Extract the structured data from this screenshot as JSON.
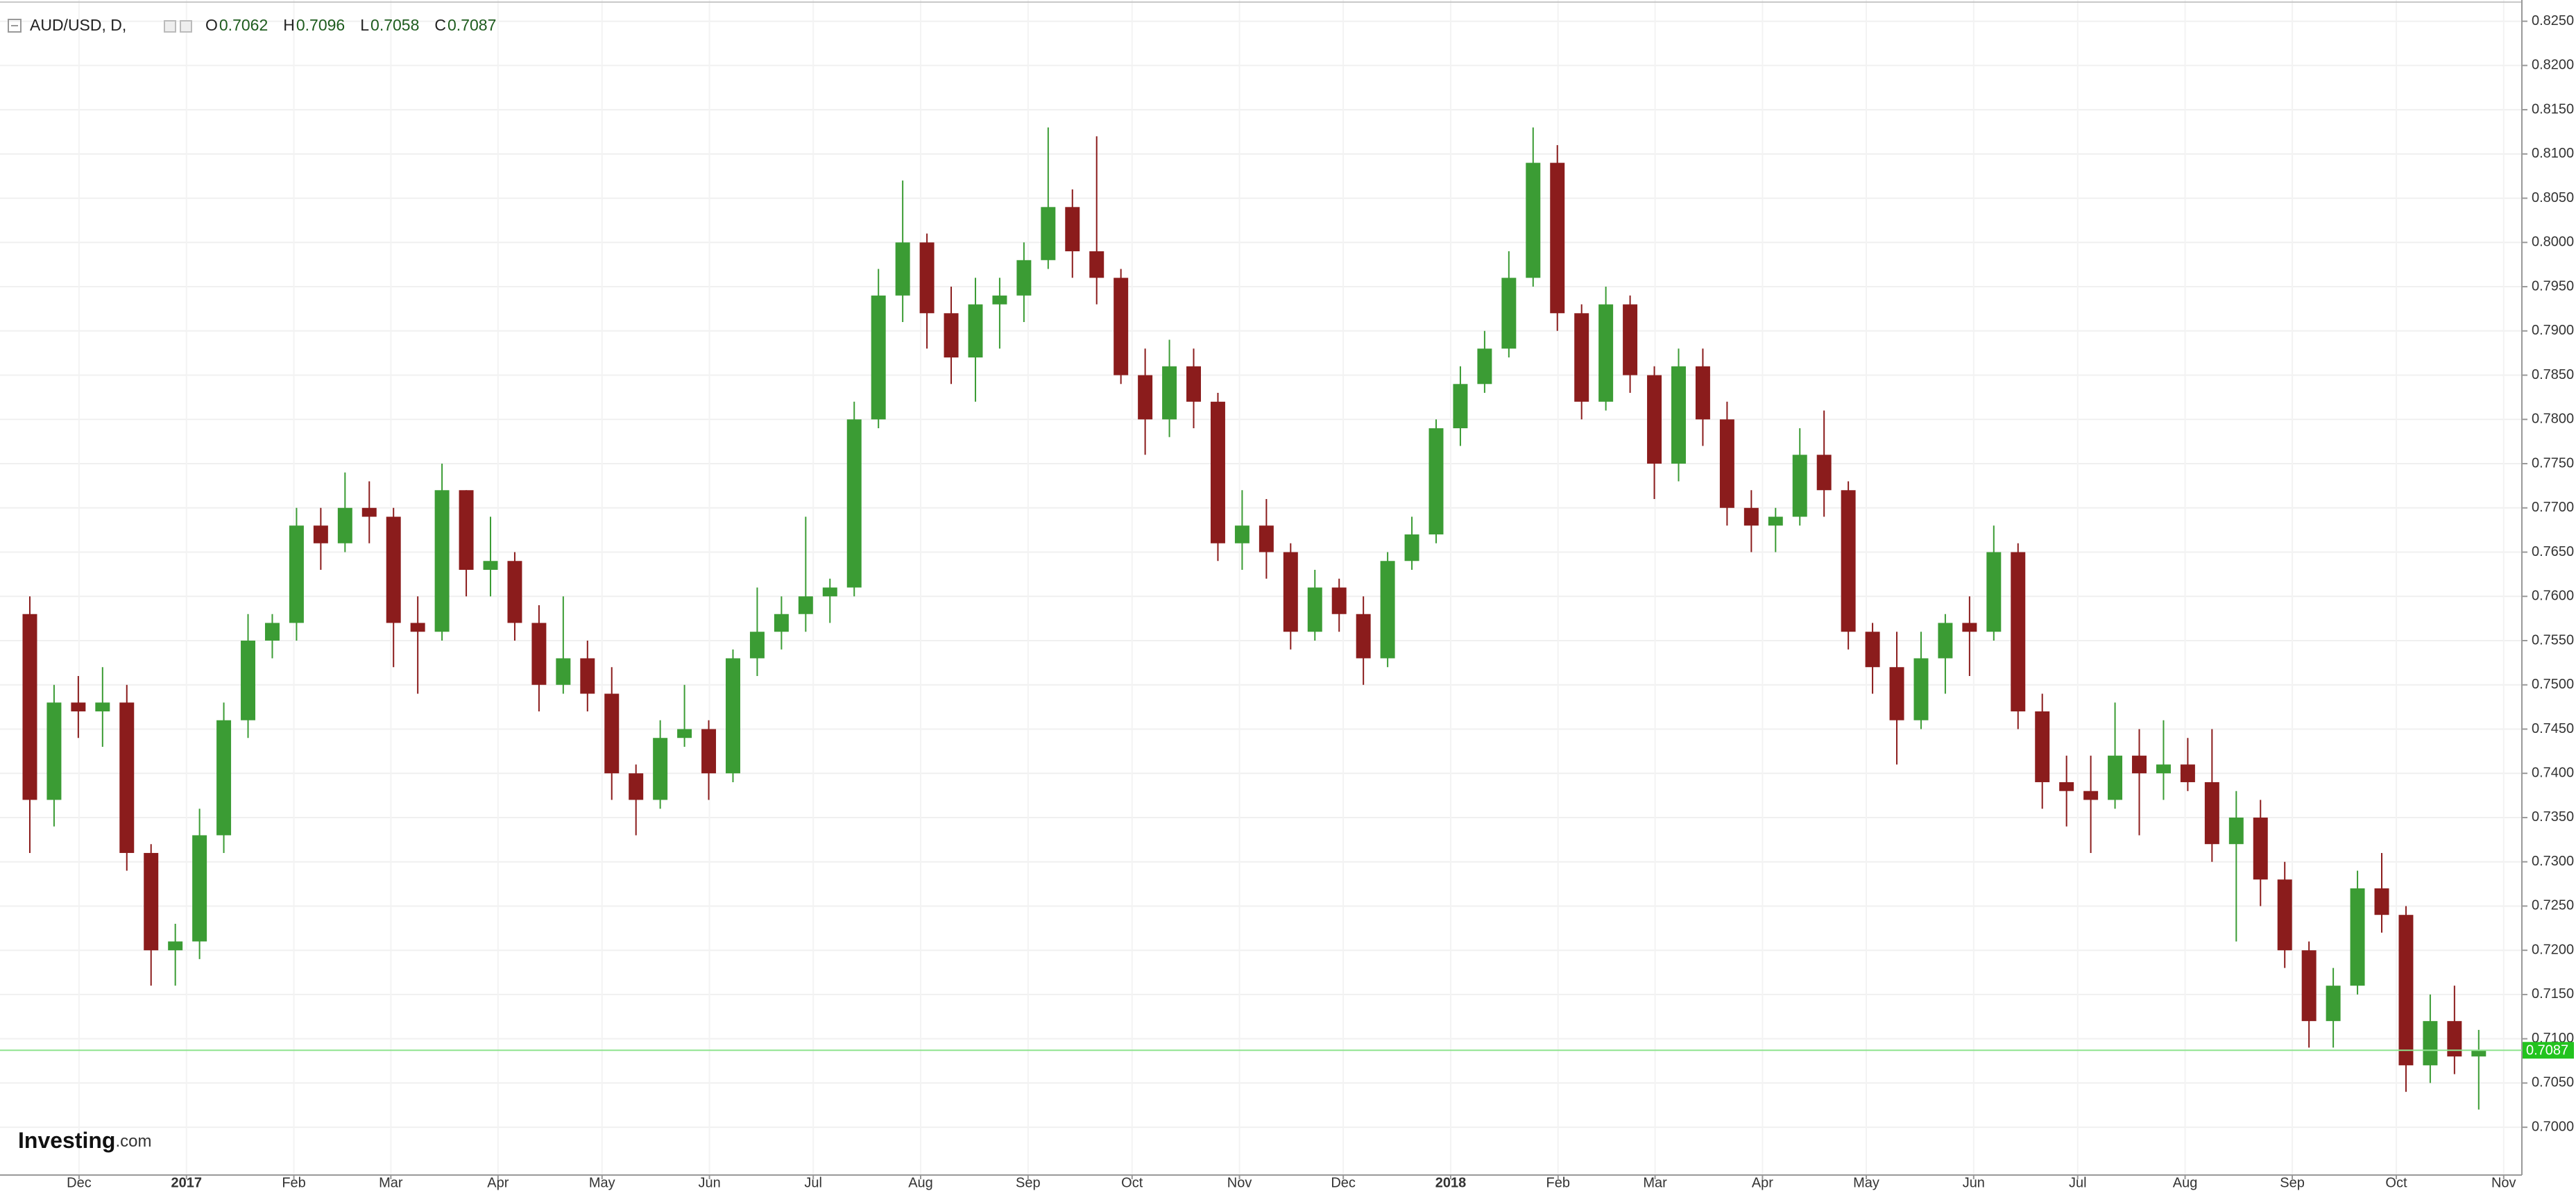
{
  "chart_data": {
    "type": "candlestick",
    "title": "AUD/USD, D,",
    "ohlc_legend": [
      {
        "name": "O",
        "value": 0.7062
      },
      {
        "name": "H",
        "value": 0.7096
      },
      {
        "name": "L",
        "value": 0.7058
      },
      {
        "name": "C",
        "value": 0.7087
      }
    ],
    "logo": {
      "brand": "Investing",
      "suffix": ".com"
    },
    "up_color": "#3b9c34",
    "down_color": "#8b1c1c",
    "grid": true,
    "last_price": 0.7087,
    "last_price_color": "#22c31e",
    "xlim": [
      -1.23,
      102.78
    ],
    "ylim": [
      0.6946,
      0.8274
    ],
    "xticks": [
      {
        "value": 2.03,
        "label": "Dec"
      },
      {
        "value": 6.46,
        "label": "2017"
      },
      {
        "value": 10.89,
        "label": "Feb"
      },
      {
        "value": 14.89,
        "label": "Mar"
      },
      {
        "value": 19.31,
        "label": "Apr"
      },
      {
        "value": 23.6,
        "label": "May"
      },
      {
        "value": 28.03,
        "label": "Jun"
      },
      {
        "value": 32.31,
        "label": "Jul"
      },
      {
        "value": 36.74,
        "label": "Aug"
      },
      {
        "value": 41.17,
        "label": "Sep"
      },
      {
        "value": 45.46,
        "label": "Oct"
      },
      {
        "value": 49.89,
        "label": "Nov"
      },
      {
        "value": 54.17,
        "label": "Dec"
      },
      {
        "value": 58.6,
        "label": "2018"
      },
      {
        "value": 63.03,
        "label": "Feb"
      },
      {
        "value": 67.03,
        "label": "Mar"
      },
      {
        "value": 71.46,
        "label": "Apr"
      },
      {
        "value": 75.74,
        "label": "May"
      },
      {
        "value": 80.17,
        "label": "Jun"
      },
      {
        "value": 84.46,
        "label": "Jul"
      },
      {
        "value": 88.89,
        "label": "Aug"
      },
      {
        "value": 93.31,
        "label": "Sep"
      },
      {
        "value": 97.6,
        "label": "Oct"
      },
      {
        "value": 102.03,
        "label": "Nov"
      }
    ],
    "yticks": [
      {
        "value": 0.7,
        "label": "0.7000"
      },
      {
        "value": 0.705,
        "label": "0.7050"
      },
      {
        "value": 0.71,
        "label": "0.7100"
      },
      {
        "value": 0.715,
        "label": "0.7150"
      },
      {
        "value": 0.72,
        "label": "0.7200"
      },
      {
        "value": 0.725,
        "label": "0.7250"
      },
      {
        "value": 0.73,
        "label": "0.7300"
      },
      {
        "value": 0.735,
        "label": "0.7350"
      },
      {
        "value": 0.74,
        "label": "0.7400"
      },
      {
        "value": 0.745,
        "label": "0.7450"
      },
      {
        "value": 0.75,
        "label": "0.7500"
      },
      {
        "value": 0.755,
        "label": "0.7550"
      },
      {
        "value": 0.76,
        "label": "0.7600"
      },
      {
        "value": 0.765,
        "label": "0.7650"
      },
      {
        "value": 0.77,
        "label": "0.7700"
      },
      {
        "value": 0.775,
        "label": "0.7750"
      },
      {
        "value": 0.78,
        "label": "0.7800"
      },
      {
        "value": 0.785,
        "label": "0.7850"
      },
      {
        "value": 0.79,
        "label": "0.7900"
      },
      {
        "value": 0.795,
        "label": "0.7950"
      },
      {
        "value": 0.8,
        "label": "0.8000"
      },
      {
        "value": 0.805,
        "label": "0.8050"
      },
      {
        "value": 0.81,
        "label": "0.8100"
      },
      {
        "value": 0.815,
        "label": "0.8150"
      },
      {
        "value": 0.82,
        "label": "0.8200"
      },
      {
        "value": 0.825,
        "label": "0.8250"
      }
    ],
    "open": [
      0.758,
      0.737,
      0.748,
      0.747,
      0.748,
      0.731,
      0.72,
      0.721,
      0.733,
      0.746,
      0.755,
      0.757,
      0.768,
      0.766,
      0.77,
      0.769,
      0.757,
      0.756,
      0.772,
      0.763,
      0.764,
      0.757,
      0.75,
      0.753,
      0.749,
      0.74,
      0.737,
      0.744,
      0.745,
      0.74,
      0.753,
      0.756,
      0.758,
      0.76,
      0.761,
      0.78,
      0.794,
      0.8,
      0.792,
      0.787,
      0.793,
      0.794,
      0.798,
      0.804,
      0.799,
      0.796,
      0.785,
      0.78,
      0.786,
      0.782,
      0.766,
      0.768,
      0.765,
      0.756,
      0.761,
      0.758,
      0.753,
      0.764,
      0.767,
      0.779,
      0.784,
      0.788,
      0.796,
      0.809,
      0.792,
      0.782,
      0.793,
      0.785,
      0.775,
      0.786,
      0.78,
      0.77,
      0.768,
      0.769,
      0.776,
      0.772,
      0.756,
      0.752,
      0.746,
      0.753,
      0.757,
      0.756,
      0.765,
      0.747,
      0.739,
      0.738,
      0.737,
      0.742,
      0.74,
      0.741,
      0.739,
      0.732,
      0.735,
      0.728,
      0.72,
      0.712,
      0.716,
      0.727,
      0.724,
      0.707,
      0.712,
      0.708
    ],
    "high": [
      0.76,
      0.75,
      0.751,
      0.752,
      0.75,
      0.732,
      0.723,
      0.736,
      0.748,
      0.758,
      0.758,
      0.77,
      0.77,
      0.774,
      0.773,
      0.77,
      0.76,
      0.775,
      0.772,
      0.769,
      0.765,
      0.759,
      0.76,
      0.755,
      0.752,
      0.741,
      0.746,
      0.75,
      0.746,
      0.754,
      0.761,
      0.76,
      0.769,
      0.762,
      0.782,
      0.797,
      0.807,
      0.801,
      0.795,
      0.796,
      0.796,
      0.8,
      0.813,
      0.806,
      0.812,
      0.797,
      0.788,
      0.789,
      0.788,
      0.783,
      0.772,
      0.771,
      0.766,
      0.763,
      0.762,
      0.76,
      0.765,
      0.769,
      0.78,
      0.786,
      0.79,
      0.799,
      0.813,
      0.811,
      0.793,
      0.795,
      0.794,
      0.786,
      0.788,
      0.788,
      0.782,
      0.772,
      0.77,
      0.779,
      0.781,
      0.773,
      0.757,
      0.756,
      0.756,
      0.758,
      0.76,
      0.768,
      0.766,
      0.749,
      0.742,
      0.742,
      0.748,
      0.745,
      0.746,
      0.744,
      0.745,
      0.738,
      0.737,
      0.73,
      0.721,
      0.718,
      0.729,
      0.731,
      0.725,
      0.715,
      0.716,
      0.711
    ],
    "low": [
      0.731,
      0.734,
      0.744,
      0.743,
      0.729,
      0.716,
      0.716,
      0.719,
      0.731,
      0.744,
      0.753,
      0.755,
      0.763,
      0.765,
      0.766,
      0.752,
      0.749,
      0.755,
      0.76,
      0.76,
      0.755,
      0.747,
      0.749,
      0.747,
      0.737,
      0.733,
      0.736,
      0.743,
      0.737,
      0.739,
      0.751,
      0.754,
      0.756,
      0.757,
      0.76,
      0.779,
      0.791,
      0.788,
      0.784,
      0.782,
      0.788,
      0.791,
      0.797,
      0.796,
      0.793,
      0.784,
      0.776,
      0.778,
      0.779,
      0.764,
      0.763,
      0.762,
      0.754,
      0.755,
      0.756,
      0.75,
      0.752,
      0.763,
      0.766,
      0.777,
      0.783,
      0.787,
      0.795,
      0.79,
      0.78,
      0.781,
      0.783,
      0.771,
      0.773,
      0.777,
      0.768,
      0.765,
      0.765,
      0.768,
      0.769,
      0.754,
      0.749,
      0.741,
      0.745,
      0.749,
      0.751,
      0.755,
      0.745,
      0.736,
      0.734,
      0.731,
      0.736,
      0.733,
      0.737,
      0.738,
      0.73,
      0.721,
      0.725,
      0.718,
      0.709,
      0.709,
      0.715,
      0.722,
      0.704,
      0.705,
      0.706,
      0.702
    ],
    "close": [
      0.737,
      0.748,
      0.747,
      0.748,
      0.731,
      0.72,
      0.721,
      0.733,
      0.746,
      0.755,
      0.757,
      0.768,
      0.766,
      0.77,
      0.769,
      0.757,
      0.756,
      0.772,
      0.763,
      0.764,
      0.757,
      0.75,
      0.753,
      0.749,
      0.74,
      0.737,
      0.744,
      0.745,
      0.74,
      0.753,
      0.756,
      0.758,
      0.76,
      0.761,
      0.78,
      0.794,
      0.8,
      0.792,
      0.787,
      0.793,
      0.794,
      0.798,
      0.804,
      0.799,
      0.796,
      0.785,
      0.78,
      0.786,
      0.782,
      0.766,
      0.768,
      0.765,
      0.756,
      0.761,
      0.758,
      0.753,
      0.764,
      0.767,
      0.779,
      0.784,
      0.788,
      0.796,
      0.809,
      0.792,
      0.782,
      0.793,
      0.785,
      0.775,
      0.786,
      0.78,
      0.77,
      0.768,
      0.769,
      0.776,
      0.772,
      0.756,
      0.752,
      0.746,
      0.753,
      0.757,
      0.756,
      0.765,
      0.747,
      0.739,
      0.738,
      0.737,
      0.742,
      0.74,
      0.741,
      0.739,
      0.732,
      0.735,
      0.728,
      0.72,
      0.712,
      0.716,
      0.727,
      0.724,
      0.707,
      0.712,
      0.708,
      0.7087
    ]
  }
}
